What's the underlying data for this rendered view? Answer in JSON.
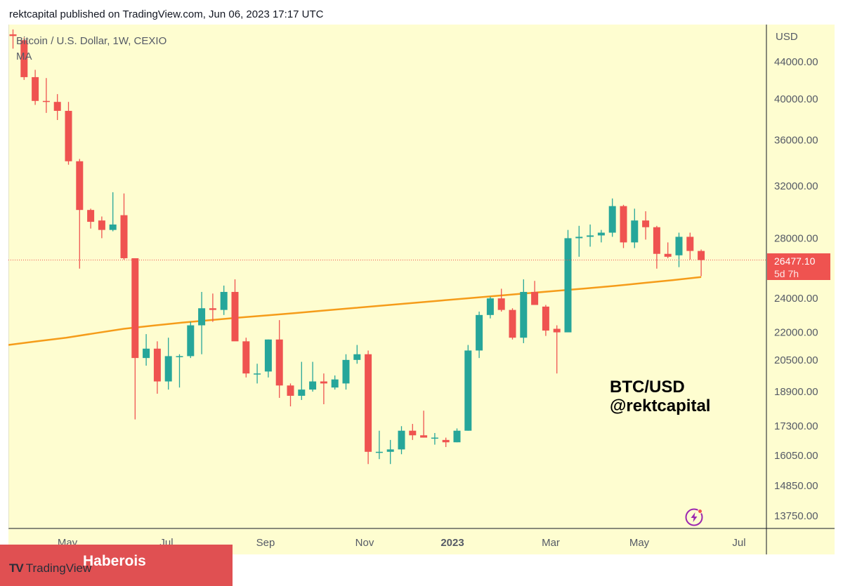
{
  "header": {
    "text": "rektcapital published on TradingView.com, Jun 06, 2023 17:17 UTC"
  },
  "legend": {
    "symbol": "Bitcoin / U.S. Dollar, 1W, CEXIO",
    "indicator": "MA"
  },
  "watermark": {
    "line1": "BTC/USD",
    "line2": "@rektcapital"
  },
  "price_tag": {
    "price": "26477.10",
    "countdown": "5d 7h"
  },
  "footer": {
    "logo_text": "TradingView",
    "overlay_text": "Haberois"
  },
  "colors": {
    "up": "#26a69a",
    "down": "#ef5350",
    "ma": "#f59c1a",
    "background": "#fefdd0",
    "price_line": "#ef5350"
  },
  "chart_data": {
    "type": "candlestick",
    "title": "Bitcoin / U.S. Dollar, 1W, CEXIO",
    "price_axis_label": "USD",
    "y_scale": "log",
    "y_ticks": [
      "44000.00",
      "40000.00",
      "36000.00",
      "32000.00",
      "28000.00",
      "24000.00",
      "22000.00",
      "20500.00",
      "18900.00",
      "17300.00",
      "16050.00",
      "14850.00",
      "13750.00"
    ],
    "x_ticks": [
      {
        "label": "May",
        "bold": false
      },
      {
        "label": "Jul",
        "bold": false
      },
      {
        "label": "Sep",
        "bold": false
      },
      {
        "label": "Nov",
        "bold": false
      },
      {
        "label": "2023",
        "bold": true
      },
      {
        "label": "Mar",
        "bold": false
      },
      {
        "label": "May",
        "bold": false
      },
      {
        "label": "Jul",
        "bold": false
      }
    ],
    "candles": [
      {
        "o": 47200,
        "h": 47800,
        "l": 45500,
        "c": 47000
      },
      {
        "o": 46500,
        "h": 46800,
        "l": 42000,
        "c": 42300
      },
      {
        "o": 42300,
        "h": 43100,
        "l": 39400,
        "c": 39800
      },
      {
        "o": 39800,
        "h": 42200,
        "l": 38600,
        "c": 39700
      },
      {
        "o": 39700,
        "h": 40500,
        "l": 37900,
        "c": 38800
      },
      {
        "o": 38800,
        "h": 39700,
        "l": 33800,
        "c": 34100
      },
      {
        "o": 34100,
        "h": 34300,
        "l": 25900,
        "c": 30100
      },
      {
        "o": 30100,
        "h": 30200,
        "l": 28700,
        "c": 29200
      },
      {
        "o": 29300,
        "h": 29600,
        "l": 28000,
        "c": 28600
      },
      {
        "o": 28600,
        "h": 31500,
        "l": 28500,
        "c": 29000
      },
      {
        "o": 29700,
        "h": 31400,
        "l": 26500,
        "c": 26600
      },
      {
        "o": 26600,
        "h": 26600,
        "l": 17600,
        "c": 20600
      },
      {
        "o": 20600,
        "h": 21900,
        "l": 20200,
        "c": 21100
      },
      {
        "o": 21100,
        "h": 21500,
        "l": 18800,
        "c": 19400
      },
      {
        "o": 19400,
        "h": 21700,
        "l": 19000,
        "c": 20700
      },
      {
        "o": 20700,
        "h": 20800,
        "l": 19100,
        "c": 20700
      },
      {
        "o": 20700,
        "h": 22600,
        "l": 20600,
        "c": 22400
      },
      {
        "o": 22400,
        "h": 24400,
        "l": 20800,
        "c": 23400
      },
      {
        "o": 23400,
        "h": 24300,
        "l": 22600,
        "c": 23300
      },
      {
        "o": 23300,
        "h": 24800,
        "l": 23000,
        "c": 24400
      },
      {
        "o": 24400,
        "h": 25200,
        "l": 21700,
        "c": 21500
      },
      {
        "o": 21500,
        "h": 21700,
        "l": 19600,
        "c": 19800
      },
      {
        "o": 19800,
        "h": 20300,
        "l": 19300,
        "c": 19800
      },
      {
        "o": 19900,
        "h": 21600,
        "l": 19600,
        "c": 21600
      },
      {
        "o": 21600,
        "h": 22700,
        "l": 18600,
        "c": 19200
      },
      {
        "o": 19200,
        "h": 19300,
        "l": 18200,
        "c": 18700
      },
      {
        "o": 18700,
        "h": 20400,
        "l": 18500,
        "c": 19000
      },
      {
        "o": 19000,
        "h": 20400,
        "l": 18900,
        "c": 19400
      },
      {
        "o": 19400,
        "h": 19800,
        "l": 18300,
        "c": 19300
      },
      {
        "o": 19100,
        "h": 19700,
        "l": 19000,
        "c": 19500
      },
      {
        "o": 19300,
        "h": 20800,
        "l": 19000,
        "c": 20500
      },
      {
        "o": 20500,
        "h": 21300,
        "l": 20300,
        "c": 20800
      },
      {
        "o": 20800,
        "h": 21000,
        "l": 15700,
        "c": 16200
      },
      {
        "o": 16200,
        "h": 17100,
        "l": 15900,
        "c": 16200
      },
      {
        "o": 16200,
        "h": 16700,
        "l": 15700,
        "c": 16300
      },
      {
        "o": 16300,
        "h": 17300,
        "l": 16100,
        "c": 17100
      },
      {
        "o": 17100,
        "h": 17400,
        "l": 16700,
        "c": 16900
      },
      {
        "o": 16900,
        "h": 18000,
        "l": 16800,
        "c": 16800
      },
      {
        "o": 16800,
        "h": 17000,
        "l": 16500,
        "c": 16800
      },
      {
        "o": 16700,
        "h": 16800,
        "l": 16400,
        "c": 16600
      },
      {
        "o": 16600,
        "h": 17200,
        "l": 16600,
        "c": 17100
      },
      {
        "o": 17100,
        "h": 21300,
        "l": 17100,
        "c": 21000
      },
      {
        "o": 21000,
        "h": 23200,
        "l": 20600,
        "c": 23000
      },
      {
        "o": 23000,
        "h": 24100,
        "l": 22800,
        "c": 24000
      },
      {
        "o": 24000,
        "h": 24600,
        "l": 23200,
        "c": 23300
      },
      {
        "o": 23300,
        "h": 23400,
        "l": 21600,
        "c": 21700
      },
      {
        "o": 21700,
        "h": 25200,
        "l": 21400,
        "c": 24400
      },
      {
        "o": 24400,
        "h": 25100,
        "l": 23700,
        "c": 23600
      },
      {
        "o": 23500,
        "h": 23600,
        "l": 21800,
        "c": 22100
      },
      {
        "o": 22200,
        "h": 22400,
        "l": 19800,
        "c": 22000
      },
      {
        "o": 22000,
        "h": 28600,
        "l": 22000,
        "c": 28000
      },
      {
        "o": 28000,
        "h": 28900,
        "l": 26700,
        "c": 28100
      },
      {
        "o": 28100,
        "h": 29000,
        "l": 27400,
        "c": 28200
      },
      {
        "o": 28200,
        "h": 28600,
        "l": 27700,
        "c": 28400
      },
      {
        "o": 28400,
        "h": 31000,
        "l": 28100,
        "c": 30400
      },
      {
        "o": 30400,
        "h": 30500,
        "l": 27300,
        "c": 27700
      },
      {
        "o": 27700,
        "h": 30200,
        "l": 27300,
        "c": 29300
      },
      {
        "o": 29300,
        "h": 30000,
        "l": 27900,
        "c": 28800
      },
      {
        "o": 28800,
        "h": 28900,
        "l": 25900,
        "c": 26900
      },
      {
        "o": 26900,
        "h": 27700,
        "l": 26600,
        "c": 26700
      },
      {
        "o": 26800,
        "h": 28400,
        "l": 26000,
        "c": 28100
      },
      {
        "o": 28100,
        "h": 28400,
        "l": 26500,
        "c": 27100
      },
      {
        "o": 27100,
        "h": 27200,
        "l": 25400,
        "c": 26477.1
      }
    ],
    "moving_average": [
      21300,
      21500,
      21700,
      21950,
      22200,
      22380,
      22550,
      22700,
      22850,
      22980,
      23120,
      23270,
      23420,
      23570,
      23720,
      23870,
      24020,
      24170,
      24320,
      24470,
      24620,
      24780,
      24960,
      25140,
      25350
    ]
  }
}
